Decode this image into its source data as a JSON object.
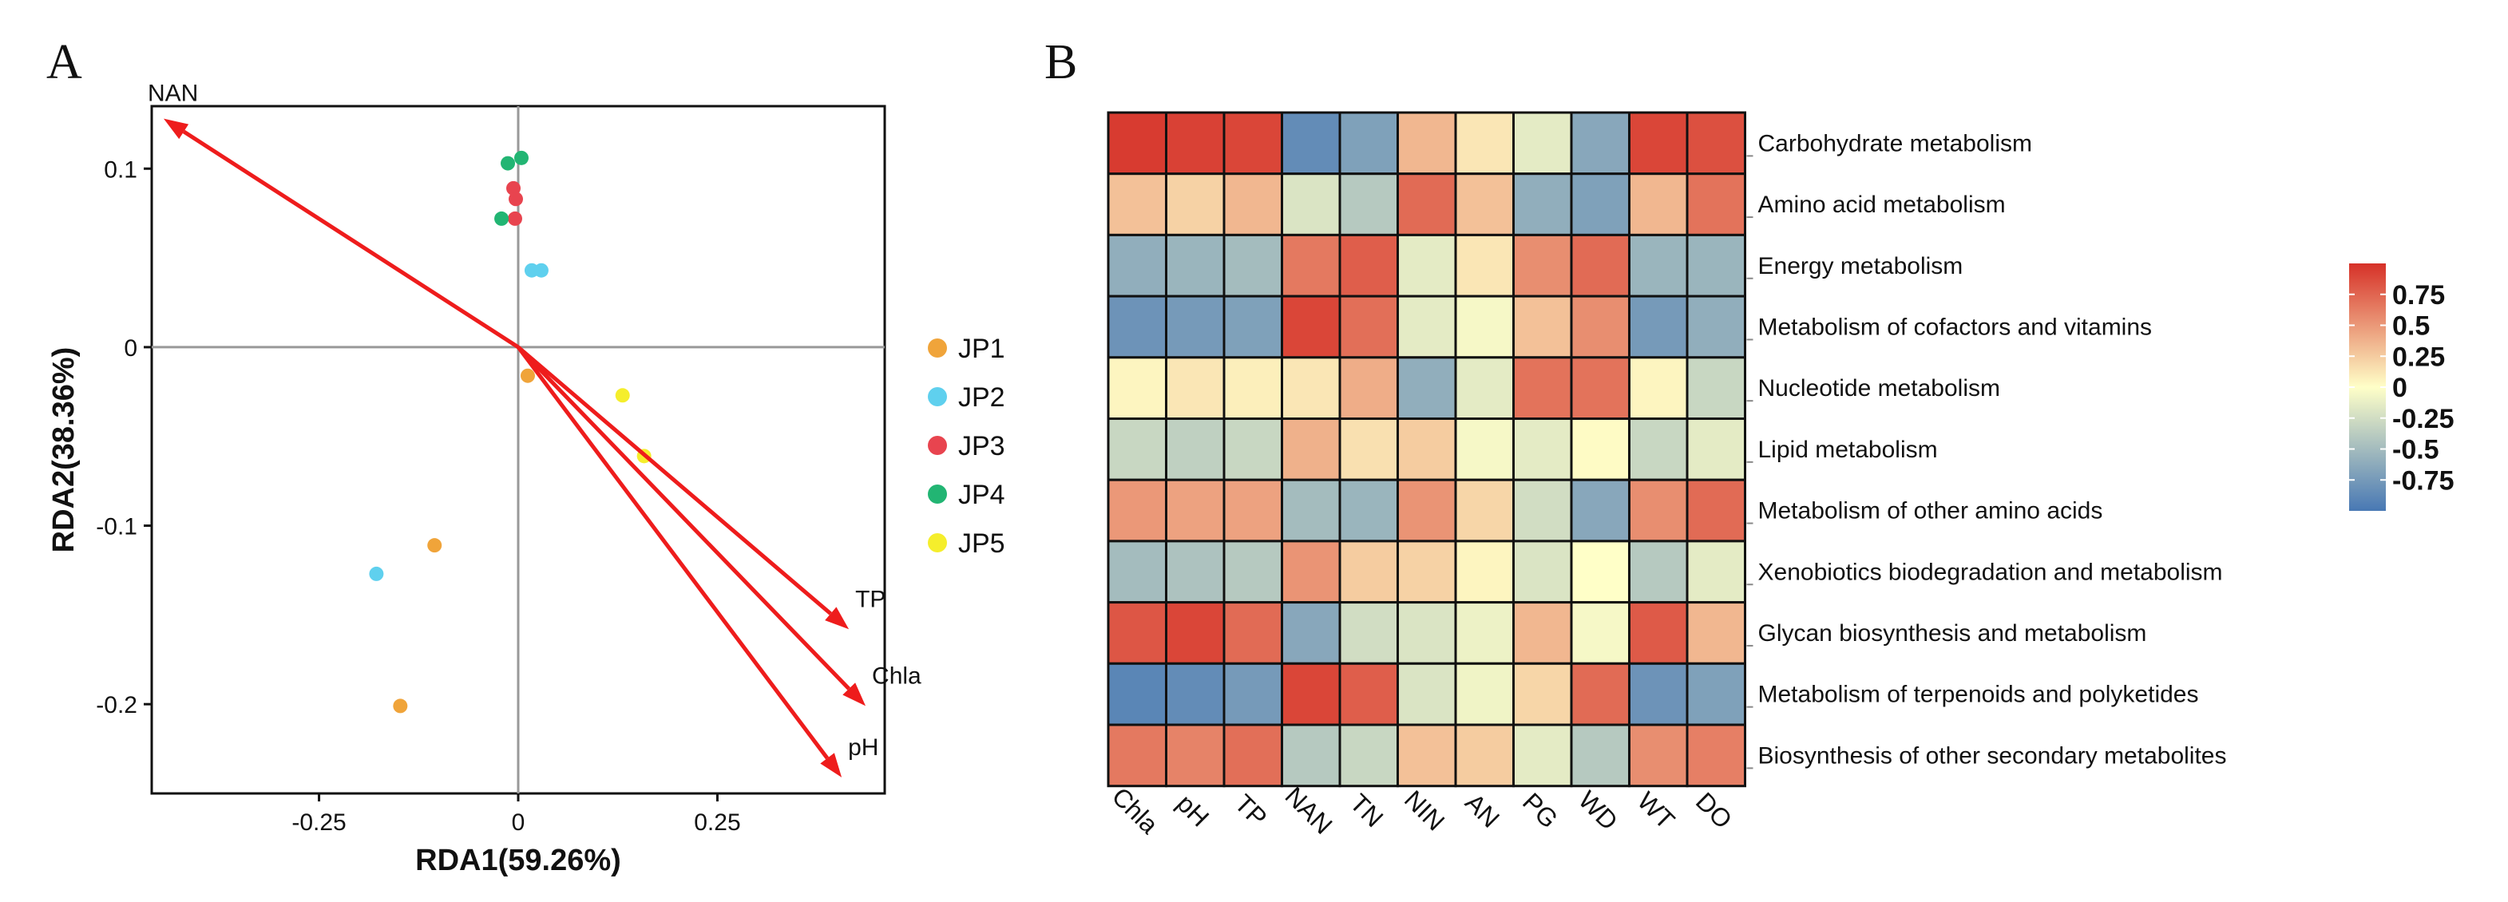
{
  "panel_labels": {
    "a": "A",
    "b": "B"
  },
  "chart_data": [
    {
      "type": "scatter",
      "title": "",
      "xlabel": "RDA1(59.26%)",
      "ylabel": "RDA2(38.36%)",
      "xlim": [
        -0.46,
        0.46
      ],
      "ylim": [
        -0.25,
        0.135
      ],
      "x_ticks": [
        -0.25,
        0,
        0.25
      ],
      "x_tick_labels": [
        "-0.25",
        "0",
        "0.25"
      ],
      "y_ticks": [
        0.1,
        0,
        -0.1,
        -0.2
      ],
      "y_tick_labels": [
        "0.1",
        "0",
        "-0.1",
        "-0.2"
      ],
      "legend_position": "right",
      "series": [
        {
          "name": "JP1",
          "color": "#f0a43a",
          "points": [
            [
              -0.105,
              -0.111
            ],
            [
              -0.148,
              -0.201
            ],
            [
              0.012,
              -0.016
            ]
          ]
        },
        {
          "name": "JP2",
          "color": "#5fd0ee",
          "points": [
            [
              -0.178,
              -0.127
            ],
            [
              0.017,
              0.043
            ],
            [
              0.029,
              0.043
            ]
          ]
        },
        {
          "name": "JP3",
          "color": "#e8444f",
          "points": [
            [
              -0.006,
              0.089
            ],
            [
              -0.003,
              0.083
            ],
            [
              -0.004,
              0.072
            ]
          ]
        },
        {
          "name": "JP4",
          "color": "#22b573",
          "points": [
            [
              0.004,
              0.106
            ],
            [
              -0.013,
              0.103
            ],
            [
              -0.021,
              0.072
            ]
          ]
        },
        {
          "name": "JP5",
          "color": "#f5ee2c",
          "points": [
            [
              0.131,
              -0.027
            ],
            [
              0.158,
              -0.061
            ]
          ]
        }
      ],
      "arrows": [
        {
          "label": "NAN",
          "x": -0.445,
          "y": 0.128
        },
        {
          "label": "TP",
          "x": 0.415,
          "y": -0.158
        },
        {
          "label": "Chla",
          "x": 0.436,
          "y": -0.201
        },
        {
          "label": "pH",
          "x": 0.406,
          "y": -0.241
        }
      ],
      "arrow_color": "#ee1c1c"
    },
    {
      "type": "heatmap",
      "title": "",
      "columns": [
        "Chla",
        "pH",
        "TP",
        "NAN",
        "TN",
        "NIN",
        "AN",
        "PG",
        "WD",
        "WT",
        "DO"
      ],
      "rows": [
        "Carbohydrate metabolism",
        "Amino acid metabolism",
        "Energy metabolism",
        "Metabolism of cofactors and vitamins",
        "Nucleotide metabolism",
        "Lipid metabolism",
        "Metabolism of other amino acids",
        "Xenobiotics biodegradation and metabolism",
        "Glycan biosynthesis and metabolism",
        "Metabolism of terpenoids and polyketides",
        "Biosynthesis of other secondary metabolites"
      ],
      "values": [
        [
          0.95,
          0.92,
          0.9,
          -0.85,
          -0.7,
          0.35,
          0.12,
          -0.15,
          -0.65,
          0.9,
          0.85
        ],
        [
          0.3,
          0.22,
          0.35,
          -0.2,
          -0.4,
          0.72,
          0.3,
          -0.6,
          -0.7,
          0.35,
          0.68
        ],
        [
          -0.6,
          -0.55,
          -0.5,
          0.65,
          0.78,
          -0.15,
          0.12,
          0.55,
          0.72,
          -0.55,
          -0.55
        ],
        [
          -0.8,
          -0.75,
          -0.7,
          0.9,
          0.7,
          -0.15,
          -0.05,
          0.3,
          0.55,
          -0.75,
          -0.6
        ],
        [
          0.05,
          0.12,
          0.08,
          0.12,
          0.4,
          -0.6,
          -0.15,
          0.68,
          0.68,
          0.05,
          -0.3
        ],
        [
          -0.3,
          -0.35,
          -0.3,
          0.38,
          0.15,
          0.25,
          -0.05,
          -0.15,
          0.02,
          -0.3,
          -0.15
        ],
        [
          0.5,
          0.45,
          0.45,
          -0.5,
          -0.55,
          0.52,
          0.2,
          -0.25,
          -0.65,
          0.55,
          0.72
        ],
        [
          -0.5,
          -0.45,
          -0.4,
          0.52,
          0.25,
          0.22,
          0.05,
          -0.2,
          0.0,
          -0.4,
          -0.15
        ],
        [
          0.82,
          0.9,
          0.72,
          -0.65,
          -0.25,
          -0.2,
          -0.1,
          0.35,
          -0.05,
          0.8,
          0.35
        ],
        [
          -0.9,
          -0.85,
          -0.75,
          0.9,
          0.78,
          -0.2,
          -0.08,
          0.2,
          0.72,
          -0.8,
          -0.7
        ],
        [
          0.65,
          0.6,
          0.7,
          -0.4,
          -0.3,
          0.3,
          0.25,
          -0.15,
          -0.4,
          0.55,
          0.62
        ]
      ],
      "colorbar": {
        "ticks": [
          0.75,
          0.5,
          0.25,
          0,
          -0.25,
          -0.5,
          -0.75
        ],
        "tick_labels": [
          "0.75",
          "0.5",
          "0.25",
          "0",
          "-0.25",
          "-0.5",
          "-0.75"
        ],
        "range": [
          -1,
          1
        ],
        "low_color": "#4878b4",
        "mid_color": "#ffffc8",
        "high_color": "#d63128"
      }
    }
  ]
}
